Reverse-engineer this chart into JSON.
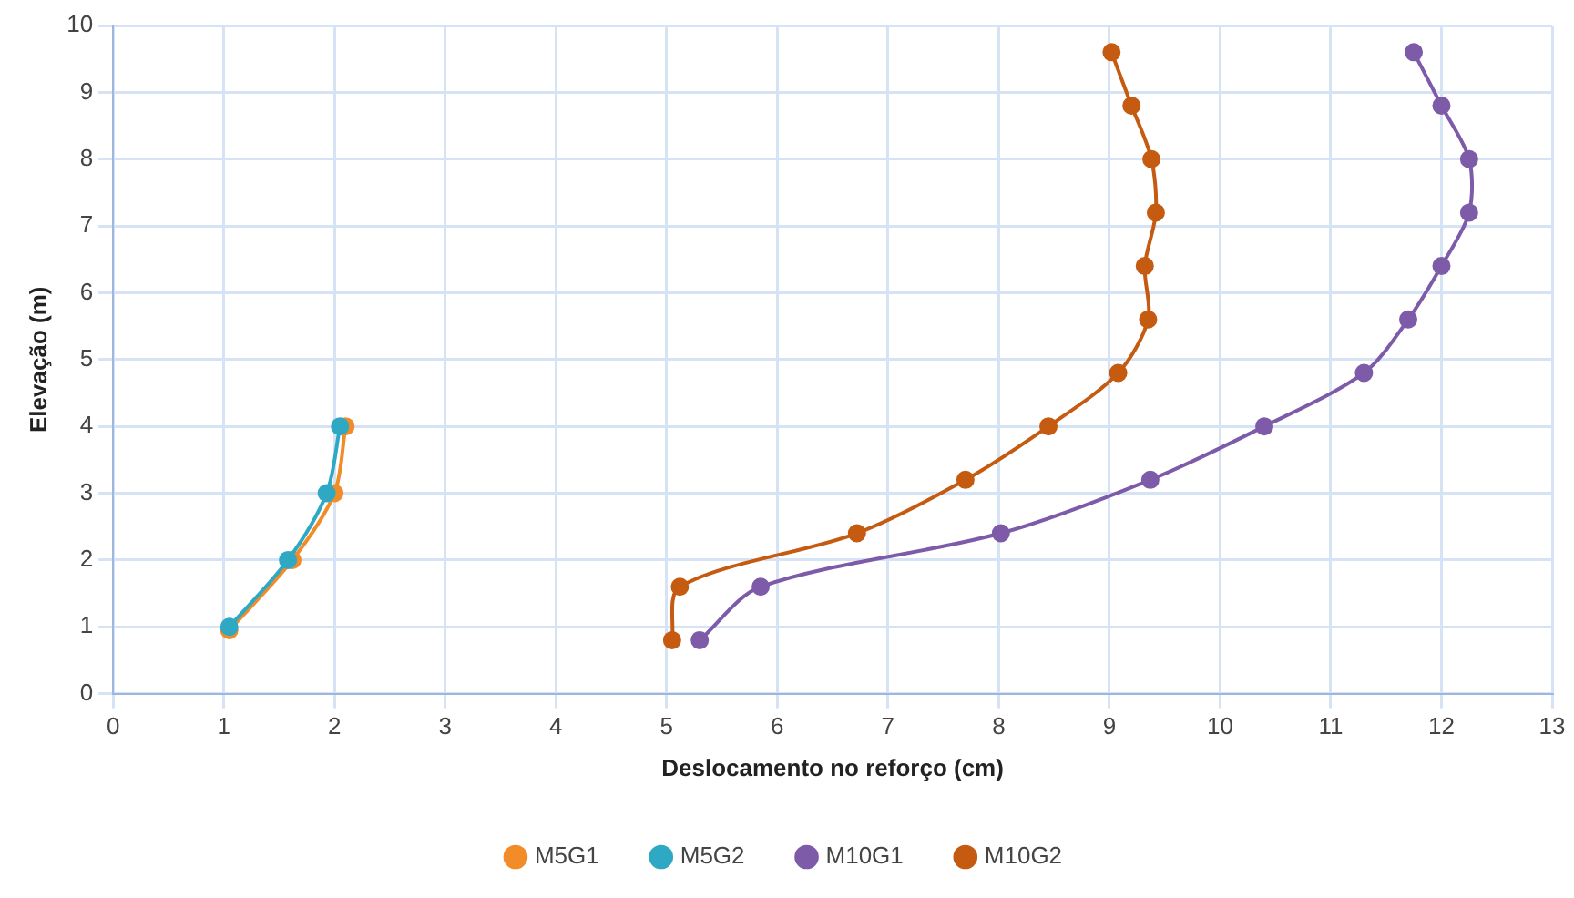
{
  "chart_data": {
    "type": "line",
    "xlabel": "Deslocamento no reforço (cm)",
    "ylabel": "Elevação (m)",
    "xlim": [
      0,
      13
    ],
    "xticks": [
      0,
      1,
      2,
      3,
      4,
      5,
      6,
      7,
      8,
      9,
      10,
      11,
      12,
      13
    ],
    "ylim": [
      0,
      10
    ],
    "yticks": [
      0,
      1,
      2,
      3,
      4,
      5,
      6,
      7,
      8,
      9,
      10
    ],
    "grid": true,
    "legend": "bottom",
    "marker": "circle",
    "line_style": "solid",
    "series": [
      {
        "name": "M5G1",
        "color": "#f28c28",
        "x": [
          1.05,
          1.62,
          2.0,
          2.1
        ],
        "values": [
          0.95,
          2,
          3,
          4
        ]
      },
      {
        "name": "M5G2",
        "color": "#2fa8c4",
        "x": [
          1.05,
          1.58,
          1.93,
          2.05
        ],
        "values": [
          1,
          2,
          3,
          4
        ]
      },
      {
        "name": "M10G1",
        "color": "#7e5ba8",
        "x": [
          5.3,
          5.85,
          8.02,
          9.37,
          10.4,
          11.3,
          11.7,
          12.0,
          12.25,
          12.25,
          12.0,
          11.75
        ],
        "values": [
          0.8,
          1.6,
          2.4,
          3.2,
          4.0,
          4.8,
          5.6,
          6.4,
          7.2,
          8.0,
          8.8,
          9.6
        ]
      },
      {
        "name": "M10G2",
        "color": "#c55a11",
        "x": [
          5.05,
          5.12,
          6.72,
          7.7,
          8.45,
          9.08,
          9.35,
          9.32,
          9.42,
          9.38,
          9.2,
          9.02
        ],
        "values": [
          0.8,
          1.6,
          2.4,
          3.2,
          4.0,
          4.8,
          5.6,
          6.4,
          7.2,
          8.0,
          8.8,
          9.6
        ]
      }
    ]
  }
}
